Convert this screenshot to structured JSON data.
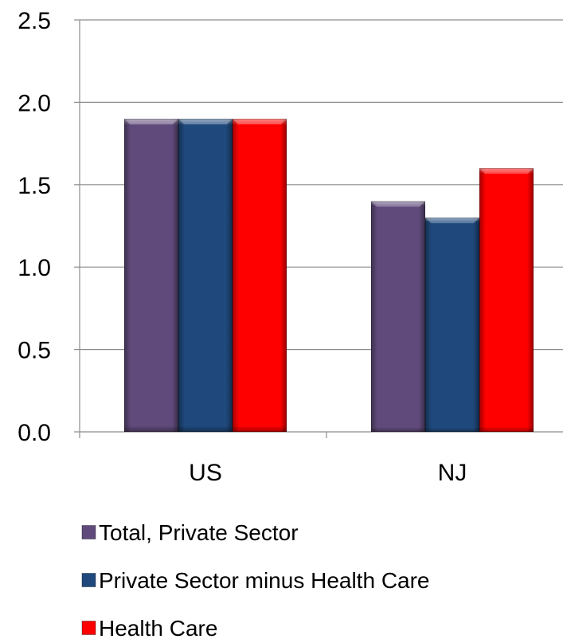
{
  "chart_data": {
    "type": "bar",
    "categories": [
      "US",
      "NJ"
    ],
    "series": [
      {
        "name": "Total, Private Sector",
        "values": [
          1.9,
          1.4
        ],
        "color": "#604a7b"
      },
      {
        "name": "Private Sector minus Health Care",
        "values": [
          1.9,
          1.3
        ],
        "color": "#1f497d"
      },
      {
        "name": "Health Care",
        "values": [
          1.9,
          1.6
        ],
        "color": "#ff0000"
      }
    ],
    "ylim": [
      0,
      2.5
    ],
    "yticks": [
      "0.0",
      "0.5",
      "1.0",
      "1.5",
      "2.0",
      "2.5"
    ],
    "grid": true,
    "legend_position": "bottom"
  }
}
